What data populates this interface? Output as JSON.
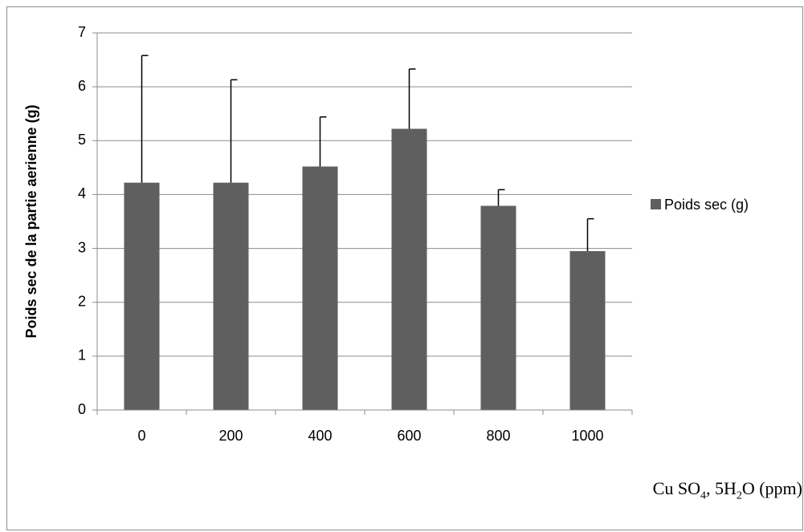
{
  "chart_data": {
    "type": "bar",
    "categories": [
      "0",
      "200",
      "400",
      "600",
      "800",
      "1000"
    ],
    "series": [
      {
        "name": "Poids sec (g)",
        "values": [
          4.22,
          4.22,
          4.52,
          5.22,
          3.79,
          2.95
        ],
        "errors": [
          2.36,
          1.91,
          0.92,
          1.11,
          0.3,
          0.6
        ],
        "color": "#5f5f5f"
      }
    ],
    "ylabel": "Poids sec de la partie aerienne (g)",
    "xlabel_parts": [
      "Cu SO",
      "4",
      ", 5H",
      "2",
      "O (ppm)"
    ],
    "ylim": [
      0,
      7
    ],
    "yticks": [
      "0",
      "1",
      "2",
      "3",
      "4",
      "5",
      "6",
      "7"
    ],
    "grid": true,
    "legend_position": "right"
  }
}
